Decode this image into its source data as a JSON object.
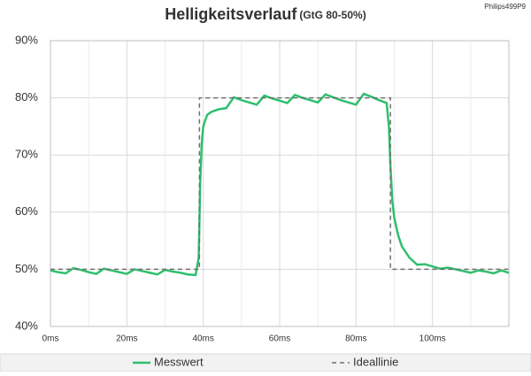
{
  "chart_data": {
    "type": "line",
    "title": "Helligkeitsverlauf",
    "subtitle": "(GtG 80-50%)",
    "corner_note": "Philips499P9",
    "xlim": [
      0,
      120
    ],
    "xticks": [
      {
        "value": 0,
        "label": "0ms"
      },
      {
        "value": 20,
        "label": "20ms"
      },
      {
        "value": 40,
        "label": "40ms"
      },
      {
        "value": 60,
        "label": "60ms"
      },
      {
        "value": 80,
        "label": "80ms"
      },
      {
        "value": 100,
        "label": "100ms"
      }
    ],
    "xminor": [
      10,
      30,
      50,
      70,
      90,
      110
    ],
    "ylim": [
      40,
      90
    ],
    "yticks": [
      {
        "value": 40,
        "label": "40%"
      },
      {
        "value": 50,
        "label": "50%"
      },
      {
        "value": 60,
        "label": "60%"
      },
      {
        "value": 70,
        "label": "70%"
      },
      {
        "value": 80,
        "label": "80%"
      },
      {
        "value": 90,
        "label": "90%"
      }
    ],
    "grid": true,
    "legend": "bottom",
    "series": [
      {
        "name": "Messwert",
        "color": "#2fbf6e",
        "dash": false,
        "x": [
          0,
          2,
          4,
          6,
          8,
          10,
          12,
          14,
          16,
          18,
          20,
          22,
          24,
          26,
          28,
          30,
          32,
          34,
          36,
          38,
          38.8,
          39.2,
          39.6,
          40,
          41,
          42,
          44,
          46,
          48,
          50,
          52,
          54,
          56,
          58,
          60,
          62,
          64,
          66,
          68,
          70,
          72,
          74,
          76,
          78,
          80,
          82,
          84,
          86,
          88,
          88.6,
          89,
          89.5,
          90,
          91,
          92,
          94,
          96,
          98,
          100,
          102,
          104,
          106,
          108,
          110,
          112,
          114,
          116,
          118,
          120
        ],
        "values": [
          49.8,
          49.5,
          49.3,
          50.2,
          49.9,
          49.5,
          49.2,
          50.1,
          49.8,
          49.5,
          49.2,
          50.0,
          49.7,
          49.4,
          49.1,
          49.9,
          49.6,
          49.4,
          49.1,
          49.0,
          52,
          65,
          72,
          75,
          77,
          77.5,
          78,
          78.2,
          80.1,
          79.6,
          79.2,
          78.8,
          80.4,
          79.9,
          79.5,
          79.1,
          80.5,
          80.0,
          79.6,
          79.2,
          80.6,
          80.1,
          79.6,
          79.2,
          78.8,
          80.7,
          80.2,
          79.6,
          79.1,
          75,
          68,
          62,
          59,
          56,
          54,
          52,
          50.8,
          50.9,
          50.5,
          50.1,
          50.3,
          50.0,
          49.7,
          49.4,
          49.8,
          49.6,
          49.3,
          49.8,
          49.4
        ]
      },
      {
        "name": "Ideallinie",
        "color": "#707070",
        "dash": true,
        "x": [
          0,
          39,
          39,
          89,
          89,
          120
        ],
        "values": [
          50,
          50,
          80,
          80,
          50,
          50
        ]
      }
    ]
  }
}
